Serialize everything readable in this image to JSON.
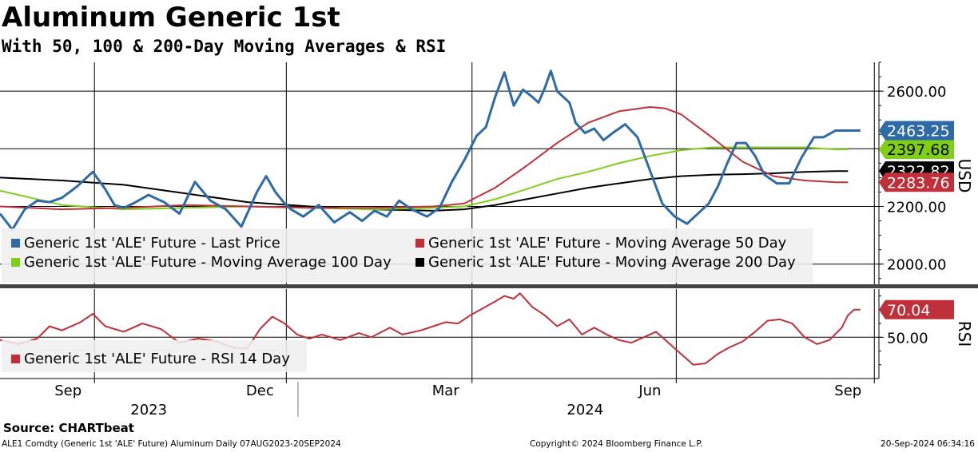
{
  "title": "Aluminum Generic 1st",
  "subtitle": "With 50, 100 & 200-Day Moving Averages & RSI",
  "source": "Source: CHARTbeat",
  "footer": {
    "left": "ALE1 Comdty (Generic 1st 'ALE' Future) Aluminum  Daily 07AUG2023-20SEP2024",
    "center": "Copyright© 2024 Bloomberg Finance L.P.",
    "right": "20-Sep-2024 06:34:16"
  },
  "colors": {
    "last_price": "#2e6aa8",
    "ma50": "#c0303a",
    "ma100": "#7fcf1a",
    "ma200": "#000000",
    "rsi": "#c0303a"
  },
  "chart_data": [
    {
      "type": "line",
      "panel": "price",
      "ylabel": "USD",
      "ylim": [
        1930,
        2700
      ],
      "yticks": [
        "2000.00",
        "2200.00",
        "2600.00"
      ],
      "x_index_range": [
        0,
        284
      ],
      "x_ticks": [
        {
          "label": "Sep",
          "index": 22
        },
        {
          "label": "Dec",
          "index": 84
        },
        {
          "label": "Mar",
          "index": 144
        },
        {
          "label": "Jun",
          "index": 210
        },
        {
          "label": "Sep",
          "index": 274
        }
      ],
      "year_labels": [
        {
          "label": "2023",
          "index": 46
        },
        {
          "label": "2024",
          "index": 187
        }
      ],
      "year_divider_index": 95,
      "series": [
        {
          "name": "Generic 1st 'ALE' Future - Last Price",
          "key": "last_price",
          "x": [
            0,
            4,
            8,
            12,
            16,
            20,
            25,
            30,
            34,
            37,
            40,
            43,
            48,
            53,
            58,
            63,
            68,
            73,
            78,
            83,
            86,
            89,
            92,
            94,
            98,
            103,
            108,
            113,
            117,
            121,
            125,
            129,
            133,
            138,
            142,
            146,
            150,
            154,
            157,
            160,
            163,
            166,
            169,
            172,
            174,
            176,
            178,
            180,
            182,
            184,
            186,
            189,
            192,
            195,
            198,
            202,
            206,
            210,
            214,
            218,
            222,
            226,
            229,
            232,
            235,
            238,
            241,
            244,
            247,
            251,
            255,
            259,
            263,
            266,
            270,
            274,
            276,
            278
          ],
          "values": [
            2175,
            2120,
            2190,
            2220,
            2215,
            2230,
            2270,
            2320,
            2260,
            2205,
            2195,
            2210,
            2240,
            2215,
            2175,
            2285,
            2220,
            2190,
            2130,
            2250,
            2305,
            2250,
            2210,
            2190,
            2165,
            2205,
            2145,
            2180,
            2150,
            2185,
            2165,
            2220,
            2190,
            2165,
            2195,
            2285,
            2360,
            2445,
            2475,
            2580,
            2665,
            2550,
            2605,
            2580,
            2560,
            2610,
            2670,
            2600,
            2580,
            2560,
            2490,
            2455,
            2470,
            2430,
            2455,
            2485,
            2440,
            2325,
            2210,
            2165,
            2140,
            2180,
            2210,
            2270,
            2350,
            2420,
            2420,
            2375,
            2310,
            2280,
            2280,
            2370,
            2440,
            2440,
            2463.25,
            2463.25,
            2463.25,
            2463.25
          ]
        },
        {
          "name": "Generic 1st 'ALE' Future - Moving Average 50 Day",
          "key": "ma50",
          "x": [
            0,
            20,
            40,
            60,
            80,
            100,
            120,
            140,
            150,
            160,
            170,
            180,
            190,
            200,
            210,
            215,
            220,
            230,
            240,
            250,
            260,
            270,
            274
          ],
          "values": [
            2200,
            2190,
            2195,
            2205,
            2200,
            2195,
            2195,
            2200,
            2210,
            2265,
            2340,
            2420,
            2490,
            2530,
            2545,
            2540,
            2520,
            2440,
            2355,
            2305,
            2290,
            2283.76,
            2283.76
          ]
        },
        {
          "name": "Generic 1st 'ALE' Future - Moving Average 100 Day",
          "key": "ma100",
          "x": [
            0,
            20,
            40,
            60,
            80,
            100,
            120,
            140,
            150,
            160,
            170,
            180,
            190,
            200,
            210,
            220,
            230,
            240,
            250,
            260,
            270,
            274
          ],
          "values": [
            2255,
            2205,
            2190,
            2195,
            2200,
            2195,
            2190,
            2195,
            2200,
            2225,
            2260,
            2295,
            2320,
            2350,
            2375,
            2395,
            2405,
            2405,
            2405,
            2405,
            2397.68,
            2397.68
          ]
        },
        {
          "name": "Generic 1st 'ALE' Future - Moving Average 200 Day",
          "key": "ma200",
          "x": [
            0,
            20,
            40,
            60,
            80,
            100,
            120,
            140,
            150,
            160,
            170,
            180,
            190,
            200,
            210,
            220,
            230,
            240,
            250,
            260,
            270,
            274
          ],
          "values": [
            2300,
            2290,
            2275,
            2245,
            2215,
            2200,
            2190,
            2185,
            2190,
            2205,
            2225,
            2245,
            2265,
            2280,
            2295,
            2305,
            2310,
            2312,
            2315,
            2320,
            2322.82,
            2322.82
          ]
        }
      ],
      "last_values": [
        {
          "key": "last_price",
          "label": "2463.25",
          "value": 2463.25
        },
        {
          "key": "ma100",
          "label": "2397.68",
          "value": 2397.68
        },
        {
          "key": "ma200",
          "label": "2322.82",
          "value": 2322.82
        },
        {
          "key": "ma50",
          "label": "2283.76",
          "value": 2283.76
        }
      ]
    },
    {
      "type": "line",
      "panel": "rsi",
      "ylabel": "RSI",
      "ylim": [
        20,
        85
      ],
      "yticks": [
        "50.00"
      ],
      "series": [
        {
          "name": "Generic 1st 'ALE' Future - RSI 14 Day",
          "key": "rsi",
          "x": [
            0,
            6,
            12,
            16,
            20,
            26,
            30,
            34,
            40,
            46,
            52,
            58,
            64,
            70,
            76,
            80,
            84,
            88,
            92,
            96,
            100,
            104,
            110,
            116,
            120,
            126,
            130,
            136,
            140,
            144,
            148,
            152,
            156,
            160,
            163,
            166,
            168,
            172,
            176,
            180,
            184,
            188,
            192,
            196,
            200,
            204,
            208,
            212,
            216,
            220,
            224,
            228,
            232,
            236,
            240,
            244,
            248,
            252,
            256,
            260,
            264,
            268,
            272,
            274,
            276,
            278
          ],
          "values": [
            48,
            45,
            49,
            58,
            55,
            61,
            67,
            58,
            54,
            60,
            56,
            46,
            49,
            47,
            42,
            42,
            56,
            65,
            60,
            52,
            49,
            52,
            48,
            53,
            50,
            57,
            52,
            55,
            58,
            61,
            60,
            66,
            71,
            76,
            80,
            78,
            82,
            72,
            66,
            58,
            63,
            52,
            57,
            52,
            48,
            46,
            50,
            54,
            46,
            38,
            30,
            31,
            38,
            43,
            47,
            54,
            62,
            63,
            60,
            50,
            45,
            48,
            57,
            66,
            70.04,
            70.04
          ]
        }
      ],
      "last_values": [
        {
          "key": "rsi",
          "label": "70.04",
          "value": 70.04
        }
      ]
    }
  ]
}
